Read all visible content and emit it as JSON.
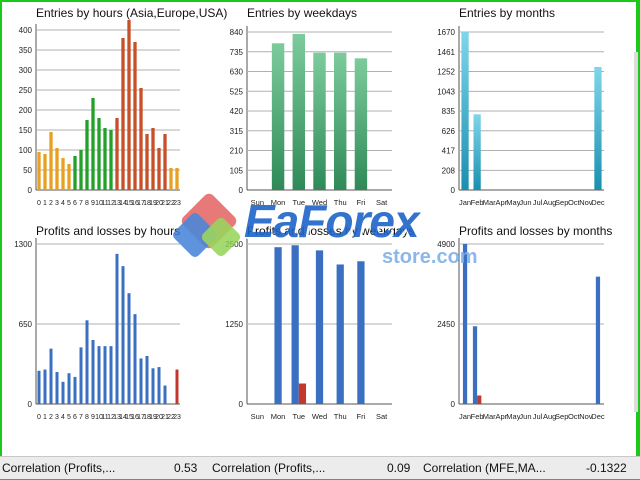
{
  "colors": {
    "orange": "#e8a020",
    "green": "#22a02a",
    "red": "#c85028",
    "lightgreen": "#7dcb9c",
    "darkgreen": "#2f8a58",
    "teal": "#2aa7c7",
    "blue": "#3a6fc2",
    "lossred": "#c0392b",
    "grid": "#b0b0b0"
  },
  "chart_data": [
    {
      "id": "entries-hours",
      "type": "bar",
      "title": "Entries by hours (Asia,Europe,USA)",
      "categories": [
        "0",
        "1",
        "2",
        "3",
        "4",
        "5",
        "6",
        "7",
        "8",
        "9",
        "10",
        "11",
        "12",
        "13",
        "14",
        "15",
        "16",
        "17",
        "18",
        "19",
        "20",
        "21",
        "22",
        "23"
      ],
      "values": [
        95,
        90,
        145,
        105,
        80,
        65,
        85,
        100,
        175,
        230,
        180,
        155,
        150,
        180,
        380,
        425,
        370,
        255,
        140,
        155,
        105,
        140,
        55,
        55
      ],
      "bar_colors": [
        "orange",
        "orange",
        "orange",
        "orange",
        "orange",
        "orange",
        "green",
        "green",
        "green",
        "green",
        "green",
        "green",
        "green",
        "red",
        "red",
        "red",
        "red",
        "red",
        "red",
        "red",
        "red",
        "red",
        "orange",
        "orange"
      ],
      "yticks": [
        "0",
        "50",
        "100",
        "150",
        "200",
        "250",
        "300",
        "350",
        "400"
      ],
      "ylim": [
        0,
        400
      ]
    },
    {
      "id": "entries-weekdays",
      "type": "bar",
      "title": "Entries by weekdays",
      "categories": [
        "Sun",
        "Mon",
        "Tue",
        "Wed",
        "Thu",
        "Fri",
        "Sat"
      ],
      "values": [
        0,
        780,
        830,
        730,
        730,
        700,
        0
      ],
      "yticks": [
        "0",
        "105",
        "210",
        "315",
        "420",
        "525",
        "630",
        "735",
        "840"
      ],
      "ylim": [
        0,
        840
      ]
    },
    {
      "id": "entries-months",
      "type": "bar",
      "title": "Entries by months",
      "categories": [
        "Jan",
        "Feb",
        "Mar",
        "Apr",
        "May",
        "Jun",
        "Jul",
        "Aug",
        "Sep",
        "Oct",
        "Nov",
        "Dec"
      ],
      "values": [
        1670,
        800,
        0,
        0,
        0,
        0,
        0,
        0,
        0,
        0,
        0,
        1300
      ],
      "yticks": [
        "0",
        "208",
        "417",
        "626",
        "835",
        "1043",
        "1252",
        "1461",
        "1670"
      ],
      "ylim": [
        0,
        1670
      ]
    },
    {
      "id": "pl-hours",
      "type": "bar",
      "title": "Profits and losses by hours",
      "categories": [
        "0",
        "1",
        "2",
        "3",
        "4",
        "5",
        "6",
        "7",
        "8",
        "9",
        "10",
        "11",
        "12",
        "13",
        "14",
        "15",
        "16",
        "17",
        "18",
        "19",
        "20",
        "21",
        "22",
        "23"
      ],
      "profits": [
        270,
        280,
        450,
        260,
        180,
        250,
        220,
        460,
        680,
        520,
        470,
        470,
        470,
        1220,
        1120,
        900,
        730,
        370,
        390,
        290,
        300,
        150,
        0,
        0
      ],
      "losses": [
        0,
        0,
        0,
        0,
        0,
        0,
        0,
        0,
        0,
        0,
        0,
        0,
        0,
        0,
        0,
        0,
        0,
        0,
        0,
        0,
        0,
        0,
        0,
        280
      ],
      "yticks": [
        "0",
        "650",
        "1300"
      ],
      "ylim": [
        0,
        1300
      ]
    },
    {
      "id": "pl-weekdays",
      "type": "bar",
      "title": "Profits and losses by weekdays",
      "categories": [
        "Sun",
        "Mon",
        "Tue",
        "Wed",
        "Thu",
        "Fri",
        "Sat"
      ],
      "profits": [
        0,
        2450,
        2480,
        2400,
        2180,
        2230,
        0
      ],
      "losses": [
        0,
        0,
        320,
        0,
        0,
        0,
        0
      ],
      "yticks": [
        "0",
        "1250",
        "2500"
      ],
      "ylim": [
        0,
        2500
      ]
    },
    {
      "id": "pl-months",
      "type": "bar",
      "title": "Profits and losses by months",
      "categories": [
        "Jan",
        "Feb",
        "Mar",
        "Apr",
        "May",
        "Jun",
        "Jul",
        "Aug",
        "Sep",
        "Oct",
        "Nov",
        "Dec"
      ],
      "profits": [
        4900,
        2380,
        0,
        0,
        0,
        0,
        0,
        0,
        0,
        0,
        0,
        3900
      ],
      "losses": [
        0,
        260,
        0,
        0,
        0,
        0,
        0,
        0,
        0,
        0,
        0,
        0
      ],
      "yticks": [
        "0",
        "2450",
        "4900"
      ],
      "ylim": [
        0,
        4900
      ]
    }
  ],
  "watermark": {
    "title": "EaForex",
    "subtitle": "store.com"
  },
  "footer": [
    {
      "label": "Correlation (Profits,...",
      "value": "0.53"
    },
    {
      "label": "Correlation (Profits,...",
      "value": "0.09"
    },
    {
      "label": "Correlation (MFE,MA...",
      "value": "-0.1322"
    }
  ]
}
